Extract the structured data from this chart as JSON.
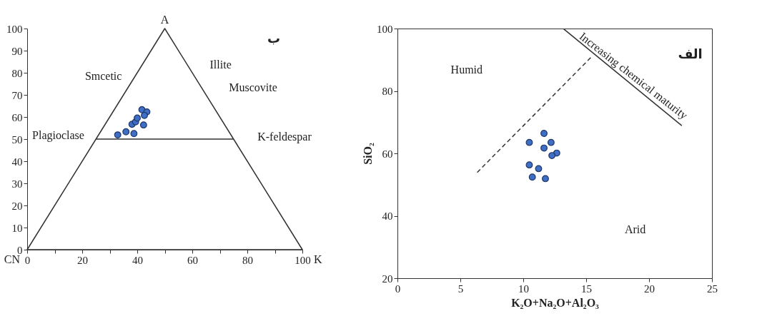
{
  "chart_data": [
    {
      "type": "scatter",
      "xlim": [
        0,
        100
      ],
      "ylim": [
        0,
        100
      ],
      "xticks": [
        0,
        {
          "value": 10,
          "label": null
        },
        20,
        {
          "value": 30,
          "label": null
        },
        40,
        {
          "value": 50,
          "label": null
        },
        60,
        {
          "value": 70,
          "label": null
        },
        80,
        {
          "value": 90,
          "label": null
        },
        100
      ],
      "yticks": [
        0,
        10,
        20,
        30,
        40,
        50,
        60,
        70,
        80,
        90,
        100
      ],
      "series": [
        {
          "color": "#3f6fc4",
          "marker": "circle",
          "x": [
            32.9,
            35.9,
            38.8,
            38.1,
            39.4,
            40.0,
            42.3,
            41.7,
            43.5,
            42.6
          ],
          "values": [
            51.9,
            53.3,
            52.5,
            56.7,
            57.8,
            59.5,
            56.4,
            63.3,
            62.3,
            60.7
          ]
        },
        {
          "type": "line",
          "color": "#333333",
          "x": [
            25,
            75,
            100,
            0,
            25,
            50,
            75
          ],
          "values": [
            50,
            50,
            0,
            0,
            50,
            100,
            50
          ]
        }
      ],
      "annotations": [
        {
          "text": "A",
          "x": 50,
          "y": 100
        },
        {
          "text": "CN",
          "x": 0,
          "y": 0
        },
        {
          "text": "K",
          "x": 100,
          "y": 0
        },
        "Smcetic",
        "Illite",
        "Muscovite",
        "Plagioclase",
        "K-feldespar",
        "ب"
      ]
    },
    {
      "type": "scatter",
      "xlim": [
        0,
        25
      ],
      "ylim": [
        20,
        100
      ],
      "xticks": [
        0,
        5,
        10,
        15,
        20,
        25
      ],
      "yticks": [
        20,
        40,
        60,
        80,
        100
      ],
      "xlabel": "K₂O+Na₂O+Al₂O₃",
      "ylabel": "SiO₂",
      "series": [
        {
          "color": "#3f6fc4",
          "marker": "circle",
          "x": [
            11.65,
            10.48,
            12.21,
            11.65,
            12.66,
            12.28,
            10.48,
            11.22,
            10.72,
            11.76
          ],
          "values": [
            66.4,
            63.5,
            63.5,
            61.7,
            60.1,
            59.3,
            56.3,
            55.1,
            52.4,
            51.9
          ]
        },
        {
          "type": "line",
          "color": "#333333",
          "line_style": "dashed",
          "x": [
            6.34,
            15.49
          ],
          "values": [
            53.9,
            91.2
          ]
        },
        {
          "type": "line",
          "color": "#333333",
          "x": [
            22.6,
            13.2
          ],
          "values": [
            68.9,
            99.9
          ]
        }
      ],
      "annotations": [
        "Humid",
        "Arid",
        "Increasing chemical maturity",
        "الف"
      ]
    }
  ]
}
